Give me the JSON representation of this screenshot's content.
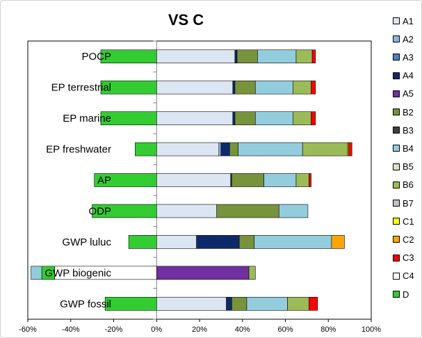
{
  "chart_data": {
    "type": "bar",
    "orientation": "horizontal",
    "stacked": true,
    "title": "VS C",
    "xlabel": "",
    "ylabel": "",
    "xlim": [
      -60,
      100
    ],
    "x_ticks": [
      "-60%",
      "-40%",
      "-20%",
      "0%",
      "20%",
      "40%",
      "60%",
      "80%",
      "100%"
    ],
    "x_tick_values": [
      -60,
      -40,
      -20,
      0,
      20,
      40,
      60,
      80,
      100
    ],
    "grid": false,
    "legend_position": "right",
    "categories": [
      "POCP",
      "EP terrestrial",
      "EP marine",
      "EP freshwater",
      "AP",
      "ODP",
      "GWP luluc",
      "GWP biogenic",
      "GWP fossil"
    ],
    "series": [
      {
        "name": "A1",
        "color": "#dce6f2",
        "values": [
          36.5,
          35.5,
          35.5,
          29,
          34.5,
          28,
          18.5,
          0,
          32.5
        ]
      },
      {
        "name": "A2",
        "color": "#8db4e2",
        "values": [
          0,
          0,
          0,
          1,
          0,
          0,
          0,
          0,
          0
        ]
      },
      {
        "name": "A3",
        "color": "#4f81bd",
        "values": [
          0,
          0,
          0,
          0,
          0,
          0,
          0.5,
          0,
          0
        ]
      },
      {
        "name": "A4",
        "color": "#0f2a6b",
        "values": [
          1,
          1,
          1,
          4,
          0.5,
          0,
          19.5,
          0,
          2.5
        ]
      },
      {
        "name": "A5",
        "color": "#7030a0",
        "values": [
          0,
          0,
          0,
          0,
          0,
          0,
          0,
          43,
          0
        ]
      },
      {
        "name": "B2",
        "color": "#77933c",
        "values": [
          9.5,
          9.5,
          9.5,
          4,
          15,
          29,
          7,
          0,
          7
        ]
      },
      {
        "name": "B3",
        "color": "#404040",
        "values": [
          0,
          0,
          0,
          0,
          0,
          0,
          0,
          0,
          0
        ]
      },
      {
        "name": "B4",
        "color": "#93cddd",
        "values": [
          18,
          17.5,
          17.5,
          30,
          15,
          13.5,
          36,
          0,
          19
        ]
      },
      {
        "name": "B5",
        "color": "#d7e4bd",
        "values": [
          0,
          0,
          0,
          0,
          0,
          0,
          0,
          0,
          0
        ]
      },
      {
        "name": "B6",
        "color": "#9bbb59",
        "values": [
          7.5,
          8.5,
          8.5,
          21,
          6,
          0,
          0,
          3,
          10
        ]
      },
      {
        "name": "B7",
        "color": "#c0c0c0",
        "values": [
          0,
          0,
          0,
          0,
          0,
          0,
          0,
          0,
          0
        ]
      },
      {
        "name": "C1",
        "color": "#ffff00",
        "values": [
          0,
          0,
          0,
          0.5,
          0,
          0,
          0,
          0,
          0
        ]
      },
      {
        "name": "C2",
        "color": "#ffa500",
        "values": [
          0,
          0,
          0,
          0,
          0,
          0,
          6,
          0,
          0
        ]
      },
      {
        "name": "C3",
        "color": "#ff0000",
        "values": [
          1.5,
          2,
          2,
          1.5,
          1,
          0,
          0,
          0,
          4
        ]
      },
      {
        "name": "C4",
        "color": "#ffffff",
        "values": [
          0,
          0,
          0,
          0,
          0,
          0,
          0,
          -47.5,
          0
        ]
      },
      {
        "name": "D",
        "color": "#33cc33",
        "values": [
          -26,
          -26,
          -26,
          -10,
          -29,
          -30,
          -13,
          -6,
          -24
        ]
      }
    ],
    "extra_segments": [
      {
        "category": "GWP biogenic",
        "name": "B4",
        "value": -5,
        "color": "#93cddd"
      }
    ]
  }
}
